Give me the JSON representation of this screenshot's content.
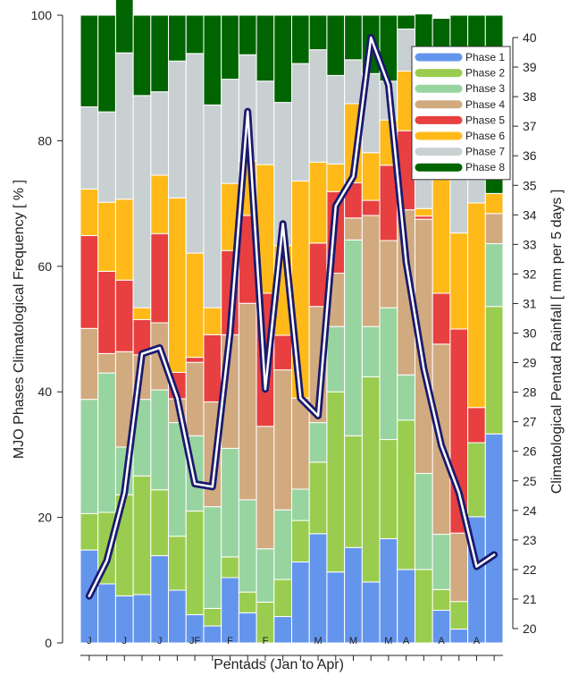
{
  "chart_data": {
    "type": "bar",
    "stacked": true,
    "xlabel": "Pentads (Jan to Apr)",
    "ylabel": "MJO Phases Climatological Frequency [ % ]",
    "y2label": "Climatological Pentad Rainfall [ mm per 5 days ]",
    "ylim": [
      0,
      100
    ],
    "y2lim": [
      19.3,
      40.6
    ],
    "yticks": [
      0,
      20,
      40,
      60,
      80,
      100
    ],
    "y2ticks": [
      20,
      21,
      22,
      23,
      24,
      25,
      26,
      27,
      28,
      29,
      30,
      31,
      32,
      33,
      34,
      35,
      36,
      37,
      38,
      39,
      40
    ],
    "month_labels": [
      {
        "label": "J",
        "pentad": 1
      },
      {
        "label": "J",
        "pentad": 3
      },
      {
        "label": "J",
        "pentad": 5
      },
      {
        "label": "JF",
        "pentad": 7
      },
      {
        "label": "F",
        "pentad": 9
      },
      {
        "label": "F",
        "pentad": 11
      },
      {
        "label": "M",
        "pentad": 14
      },
      {
        "label": "M",
        "pentad": 16
      },
      {
        "label": "M",
        "pentad": 18
      },
      {
        "label": "A",
        "pentad": 19
      },
      {
        "label": "A",
        "pentad": 21
      },
      {
        "label": "A",
        "pentad": 23
      }
    ],
    "legend_position": "top-right",
    "grid": false,
    "series": [
      {
        "name": "Phase 1",
        "color": "#6495ED",
        "values": [
          14.8,
          9.4,
          7.5,
          7.7,
          13.9,
          8.4,
          4.5,
          2.7,
          10.4,
          4.8,
          0,
          4.2,
          12.9,
          17.4,
          11.3,
          15.2,
          9.7,
          16.6,
          11.7,
          0,
          5.2,
          2.2,
          20.1,
          33.3
        ]
      },
      {
        "name": "Phase 2",
        "color": "#9ACD4F",
        "values": [
          5.8,
          11.4,
          16.1,
          18.9,
          10.5,
          8.6,
          16.5,
          2.8,
          3.3,
          3.3,
          6.5,
          5.9,
          6.6,
          11.4,
          28.7,
          17.8,
          32.7,
          15.8,
          23.8,
          11.7,
          3.3,
          4.4,
          11.8,
          20.3
        ]
      },
      {
        "name": "Phase 3",
        "color": "#98D4A0",
        "values": [
          18.2,
          22.2,
          7.6,
          12.2,
          15.9,
          18.1,
          12.0,
          16.2,
          17.3,
          14.7,
          8.5,
          11.1,
          5.0,
          6.3,
          10.4,
          31.2,
          8.0,
          21.0,
          7.2,
          15.3,
          8.8,
          0,
          0,
          10.0
        ]
      },
      {
        "name": "Phase 4",
        "color": "#D2AA80",
        "values": [
          11.3,
          3.1,
          15.2,
          7.1,
          10.7,
          3.8,
          11.7,
          16.7,
          18.1,
          31.3,
          19.5,
          22.3,
          14.5,
          18.5,
          8.5,
          3.5,
          17.7,
          10.7,
          26.3,
          40.5,
          30.3,
          10.9,
          0,
          4.8
        ]
      },
      {
        "name": "Phase 5",
        "color": "#E84040",
        "values": [
          14.8,
          13.1,
          11.4,
          5.6,
          14.2,
          4.2,
          0.8,
          10.7,
          13.4,
          14.0,
          21.2,
          5.5,
          0,
          10.1,
          13.0,
          5.6,
          2.4,
          12.0,
          12.6,
          0.5,
          8.1,
          32.5,
          5.6,
          0
        ]
      },
      {
        "name": "Phase 6",
        "color": "#FFBA1A",
        "values": [
          7.4,
          11.0,
          12.9,
          1.9,
          9.3,
          27.8,
          16.6,
          4.3,
          10.7,
          8.7,
          20.5,
          14.3,
          34.6,
          12.9,
          4.4,
          12.6,
          7.6,
          7.2,
          9.5,
          1.2,
          24.7,
          15.3,
          32.6,
          3.2
        ]
      },
      {
        "name": "Phase 7",
        "color": "#C9D0D2",
        "values": [
          13.1,
          14.4,
          23.3,
          33.8,
          13.3,
          21.8,
          31.8,
          32.3,
          16.6,
          16.9,
          13.3,
          22.8,
          18.7,
          17.9,
          14.1,
          7.0,
          12.6,
          6.2,
          6.7,
          18.3,
          7.1,
          9.3,
          7.0,
          0
        ]
      },
      {
        "name": "Phase 8",
        "color": "#006400",
        "values": [
          14.6,
          15.4,
          16.0,
          12.8,
          12.2,
          7.3,
          6.1,
          14.3,
          10.2,
          6.3,
          10.5,
          13.9,
          7.7,
          5.5,
          9.6,
          7.1,
          9.3,
          10.5,
          2.2,
          12.7,
          12.0,
          25.4,
          22.9,
          28.4
        ]
      }
    ],
    "rainfall_line": {
      "color": "#1a1a6e",
      "values": [
        21.1,
        22.3,
        24.6,
        29.3,
        29.5,
        27.8,
        24.9,
        24.8,
        30.0,
        37.5,
        28.1,
        33.7,
        27.8,
        27.2,
        34.3,
        35.3,
        40.0,
        38.4,
        32.4,
        28.8,
        26.2,
        24.6,
        22.1,
        22.5
      ]
    }
  }
}
